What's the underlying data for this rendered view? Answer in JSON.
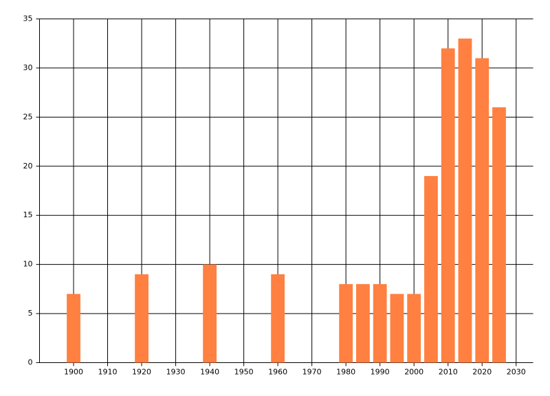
{
  "chart_data": {
    "type": "bar",
    "x": [
      1900,
      1920,
      1940,
      1960,
      1980,
      1985,
      1990,
      1995,
      2000,
      2005,
      2010,
      2015,
      2020,
      2025
    ],
    "values": [
      7,
      9,
      10,
      9,
      8,
      8,
      8,
      7,
      7,
      19,
      32,
      33,
      31,
      26
    ],
    "color": "#ff8040",
    "xlim": [
      1890,
      2035
    ],
    "xticks": [
      1900,
      1910,
      1920,
      1930,
      1940,
      1950,
      1960,
      1970,
      1980,
      1990,
      2000,
      2010,
      2020,
      2030
    ],
    "ylim": [
      0,
      35
    ],
    "yticks": [
      0,
      5,
      10,
      15,
      20,
      25,
      30,
      35
    ],
    "grid": true
  }
}
